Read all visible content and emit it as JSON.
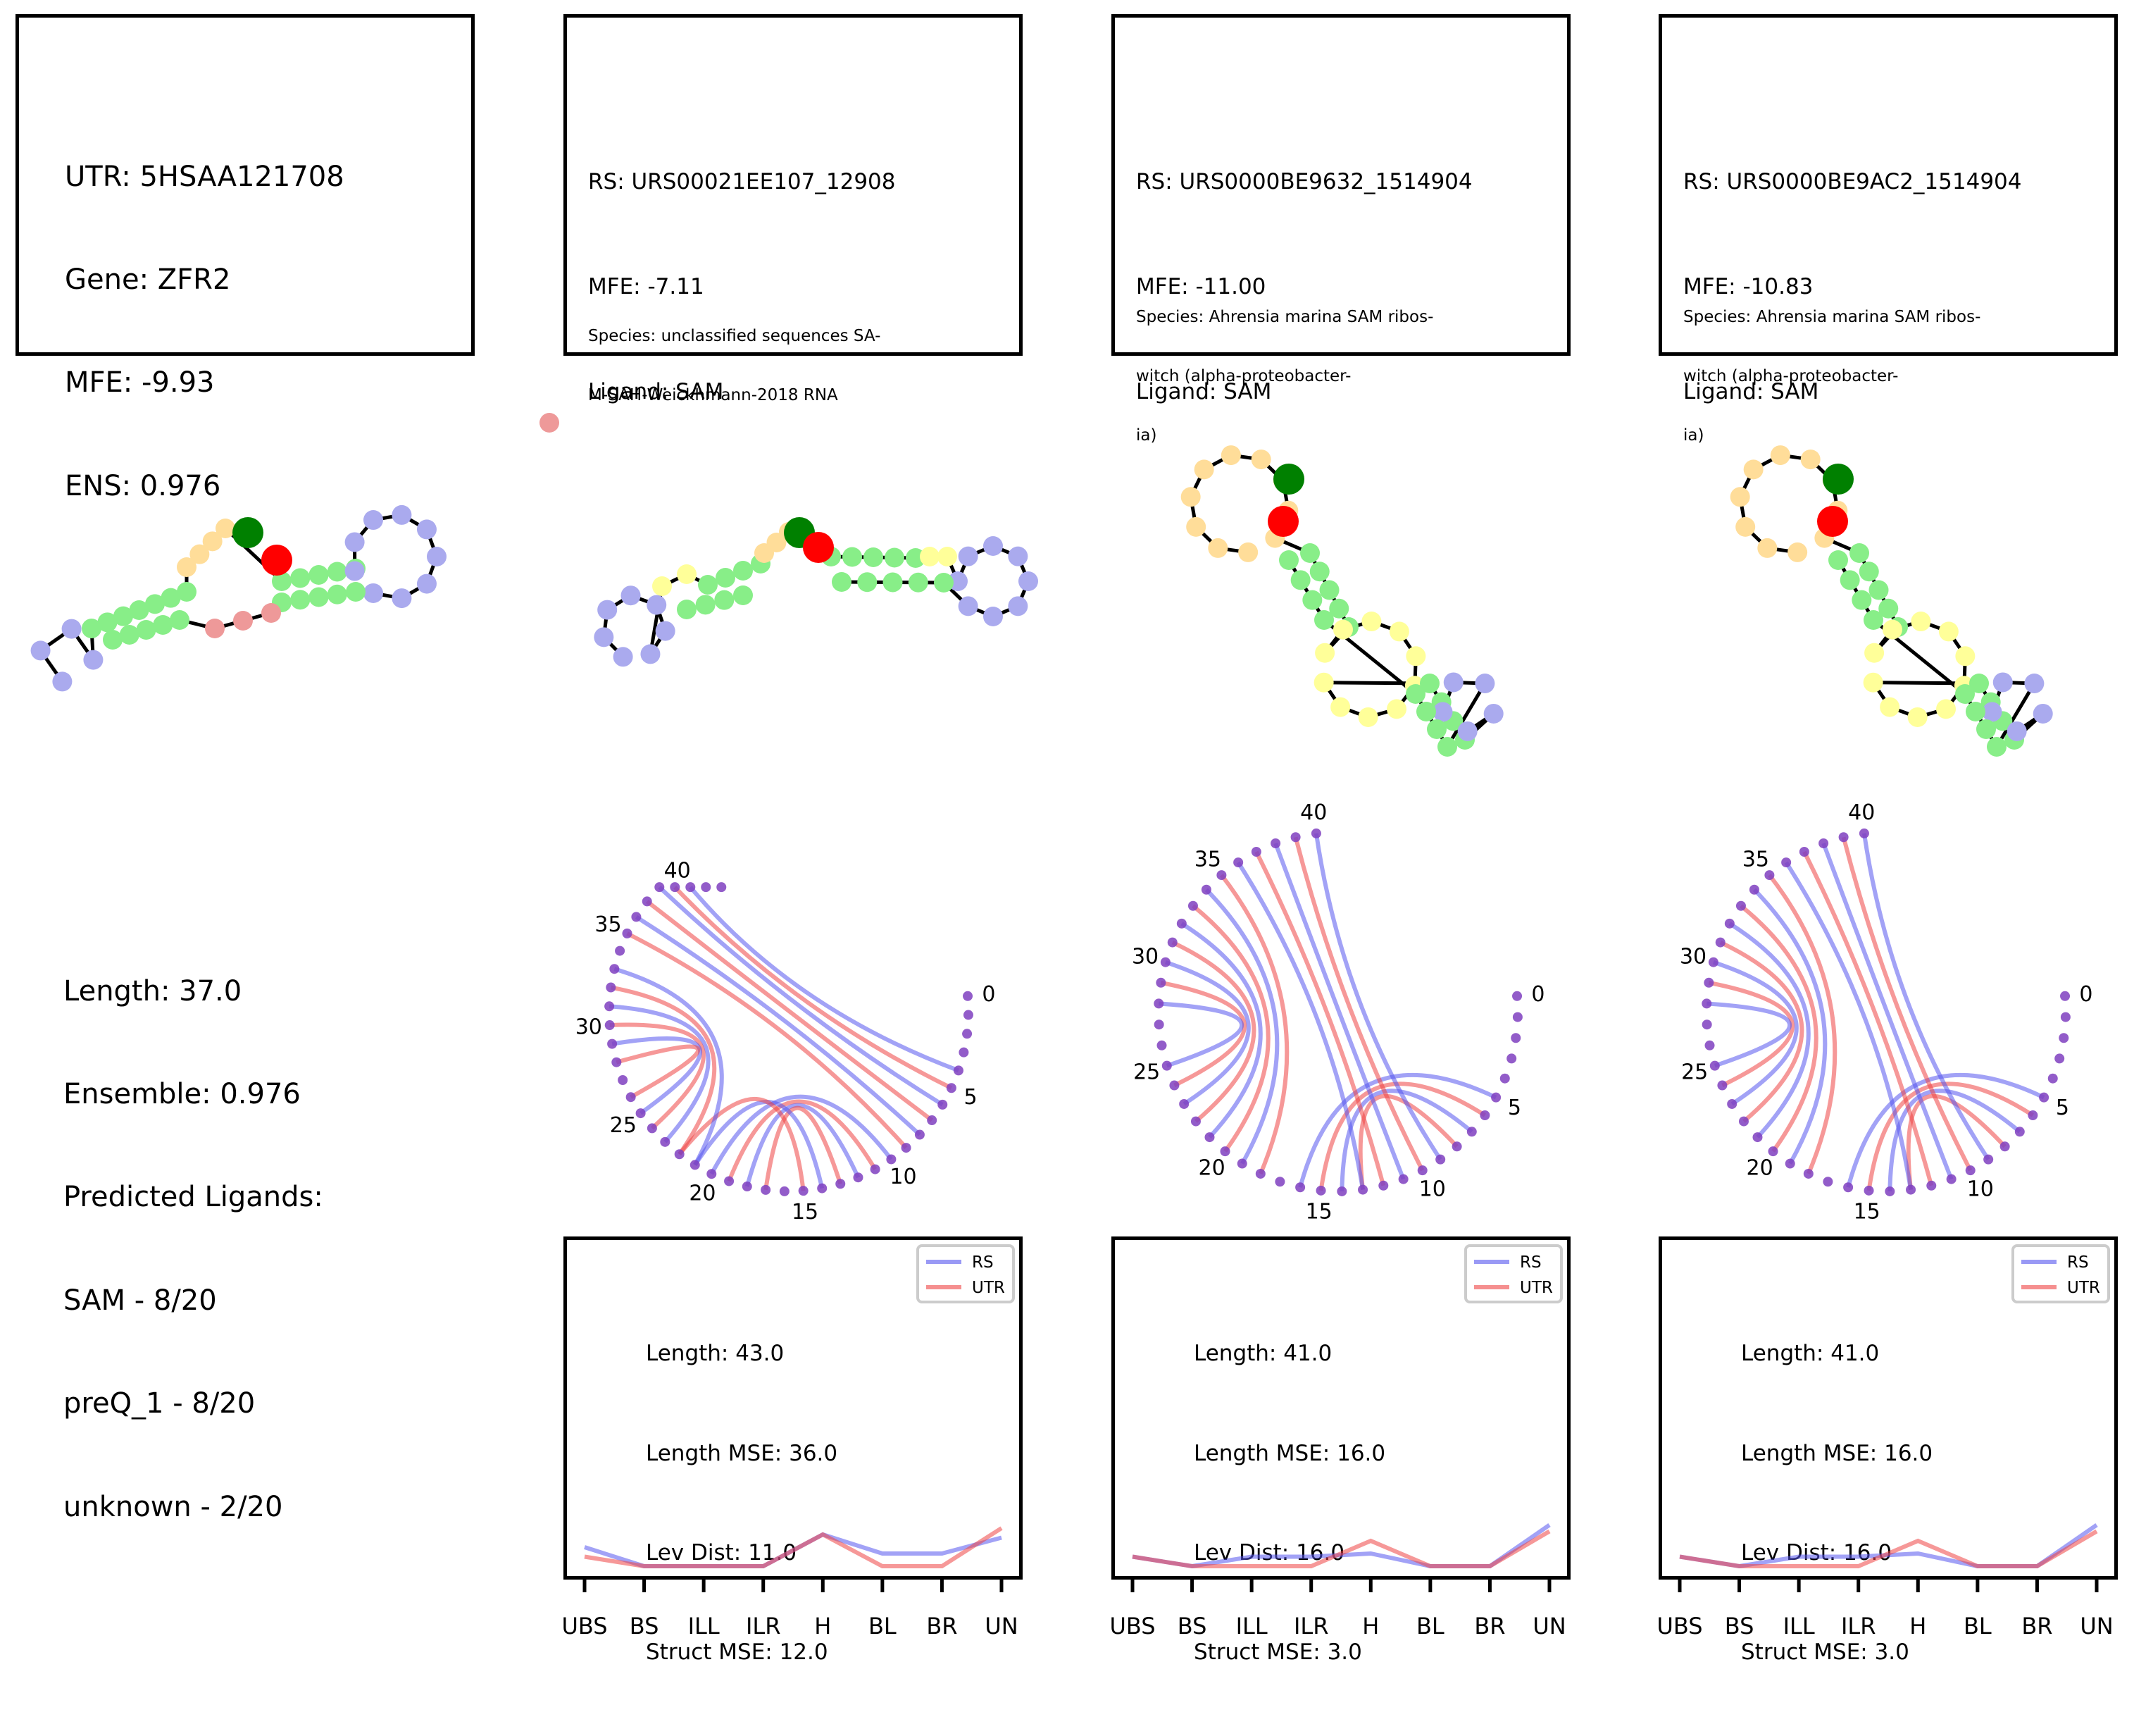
{
  "utr_panel": {
    "lines": [
      "UTR: 5HSAA121708",
      "Gene: ZFR2",
      "MFE: -9.93",
      "ENS: 0.976"
    ],
    "summary_lines": [
      "Length: 37.0",
      "Ensemble: 0.976",
      "Predicted Ligands:",
      "SAM - 8/20",
      "preQ_1 - 8/20",
      "unknown - 2/20"
    ]
  },
  "columns": [
    {
      "info_lines": [
        "RS: URS00021EE107_12908",
        "MFE: -7.11",
        "Ligand: SAM"
      ],
      "species_lines": [
        "Species: unclassified sequences SA-",
        "M-SAH-Weickhmann-2018 RNA"
      ],
      "stats_lines": [
        "Length: 43.0",
        "Length MSE: 36.0",
        "Lev Dist: 11.0",
        "Struct MSE: 12.0"
      ],
      "arc_labels": [
        "0",
        "5",
        "10",
        "15",
        "20",
        "25",
        "30",
        "35",
        "40"
      ]
    },
    {
      "info_lines": [
        "RS: URS0000BE9632_1514904",
        "MFE: -11.00",
        "Ligand: SAM"
      ],
      "species_lines": [
        "Species: Ahrensia marina SAM ribos-",
        "witch (alpha-proteobacter-",
        "ia)"
      ],
      "stats_lines": [
        "Length: 41.0",
        "Length MSE: 16.0",
        "Lev Dist: 16.0",
        "Struct MSE: 3.0"
      ],
      "arc_labels": [
        "0",
        "5",
        "10",
        "15",
        "20",
        "25",
        "30",
        "35",
        "40"
      ]
    },
    {
      "info_lines": [
        "RS: URS0000BE9AC2_1514904",
        "MFE: -10.83",
        "Ligand: SAM"
      ],
      "species_lines": [
        "Species: Ahrensia marina SAM ribos-",
        "witch (alpha-proteobacter-",
        "ia)"
      ],
      "stats_lines": [
        "Length: 41.0",
        "Length MSE: 16.0",
        "Lev Dist: 16.0",
        "Struct MSE: 3.0"
      ],
      "arc_labels": [
        "0",
        "5",
        "10",
        "15",
        "20",
        "25",
        "30",
        "35",
        "40"
      ]
    }
  ],
  "colors": {
    "rs": "#5555ee",
    "utr": "#ee4444",
    "stem": "#88ee88",
    "hairpin": "#aaaaee",
    "bulge": "#ffdd99",
    "interior": "#ffff99",
    "unpaired": "#ee9999",
    "start_marker": "#008000",
    "end_marker": "#ff0000",
    "arc_node": "#7f3fbf"
  },
  "chart_data": [
    {
      "type": "line",
      "categories": [
        "UBS",
        "BS",
        "ILL",
        "ILR",
        "H",
        "BL",
        "BR",
        "UN"
      ],
      "legend_position": "top-right",
      "series": [
        {
          "name": "RS",
          "values": [
            3,
            0,
            0,
            0,
            5,
            2,
            2,
            4.5
          ]
        },
        {
          "name": "UTR",
          "values": [
            1.5,
            0,
            0,
            0,
            5,
            0,
            0,
            6
          ]
        }
      ]
    },
    {
      "type": "line",
      "categories": [
        "UBS",
        "BS",
        "ILL",
        "ILR",
        "H",
        "BL",
        "BR",
        "UN"
      ],
      "legend_position": "top-right",
      "series": [
        {
          "name": "RS",
          "values": [
            1.5,
            0,
            1.5,
            1.5,
            2,
            0,
            0,
            6.5
          ]
        },
        {
          "name": "UTR",
          "values": [
            1.5,
            0,
            0,
            0,
            4,
            0,
            0,
            5.5
          ]
        }
      ]
    },
    {
      "type": "line",
      "categories": [
        "UBS",
        "BS",
        "ILL",
        "ILR",
        "H",
        "BL",
        "BR",
        "UN"
      ],
      "legend_position": "top-right",
      "series": [
        {
          "name": "RS",
          "values": [
            1.5,
            0,
            1.5,
            1.5,
            2,
            0,
            0,
            6.5
          ]
        },
        {
          "name": "UTR",
          "values": [
            1.5,
            0,
            0,
            0,
            4,
            0,
            0,
            5.5
          ]
        }
      ]
    }
  ]
}
